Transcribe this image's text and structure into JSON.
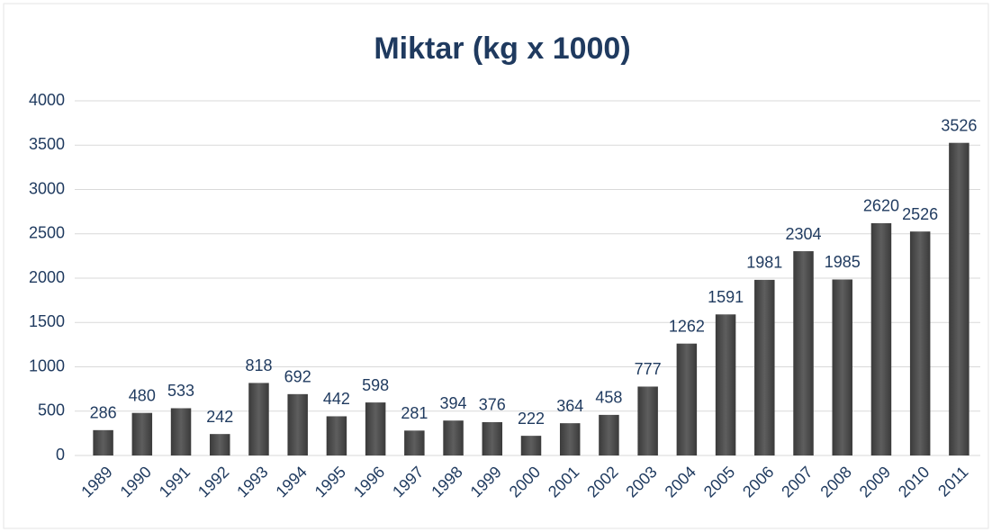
{
  "chart_data": {
    "type": "bar",
    "title": "Miktar (kg x 1000)",
    "categories": [
      "1989",
      "1990",
      "1991",
      "1992",
      "1993",
      "1994",
      "1995",
      "1996",
      "1997",
      "1998",
      "1999",
      "2000",
      "2001",
      "2002",
      "2003",
      "2004",
      "2005",
      "2006",
      "2007",
      "2008",
      "2009",
      "2010",
      "2011"
    ],
    "values": [
      286,
      480,
      533,
      242,
      818,
      692,
      442,
      598,
      281,
      394,
      376,
      222,
      364,
      458,
      777,
      1262,
      1591,
      1981,
      2304,
      1985,
      2620,
      2526,
      3526
    ],
    "color": "#4d4d4d",
    "ylim": [
      0,
      4000
    ],
    "yticks": [
      0,
      500,
      1000,
      1500,
      2000,
      2500,
      3000,
      3500,
      4000
    ],
    "grid": true
  }
}
